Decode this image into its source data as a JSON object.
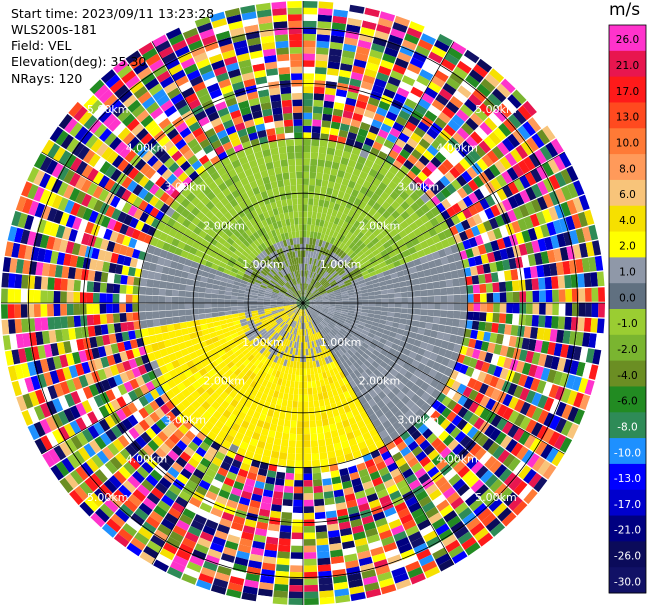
{
  "header": {
    "start_time": "Start time: 2023/09/11 13:23:28",
    "instrument": "WLS200s-181",
    "field": "Field: VEL",
    "elevation": "Elevation(deg): 35.30",
    "nrays": "NRays: 120"
  },
  "chart_data": {
    "type": "heatmap",
    "projection": "polar-ppi",
    "field": "VEL",
    "n_rays": 120,
    "range_rings_km": [
      1.0,
      2.0,
      3.0,
      4.0,
      5.0
    ],
    "range_ring_labels": [
      "1.00km",
      "2.00km",
      "3.00km",
      "4.00km",
      "5.00km"
    ],
    "max_range_km": 5.5,
    "colorbar": {
      "unit": "m/s",
      "ticks": [
        "26.0",
        "21.0",
        "17.0",
        "13.0",
        "10.0",
        "8.0",
        "6.0",
        "4.0",
        "2.0",
        "1.0",
        "0.0",
        "-1.0",
        "-2.0",
        "-4.0",
        "-6.0",
        "-8.0",
        "-10.0",
        "-13.0",
        "-17.0",
        "-21.0",
        "-26.0",
        "-30.0"
      ],
      "colors": [
        "#ff33cc",
        "#e8164f",
        "#ff1a1a",
        "#ff4a1f",
        "#ff7a36",
        "#ff9a5a",
        "#f8c47a",
        "#f6e000",
        "#ffff00",
        "#8f98a8",
        "#607080",
        "#9acd32",
        "#7ab530",
        "#6b8e23",
        "#228b22",
        "#2e8b57",
        "#1e90ff",
        "#0000ff",
        "#0000cd",
        "#000080",
        "#0b0b5a",
        "#111166"
      ]
    },
    "velocity_pattern": {
      "positive_sector_deg": [
        150,
        260
      ],
      "negative_sector_deg": [
        290,
        70
      ],
      "signal_limit_km": [
        1.2,
        2.9
      ],
      "noise_beyond_km": 3.0
    }
  }
}
